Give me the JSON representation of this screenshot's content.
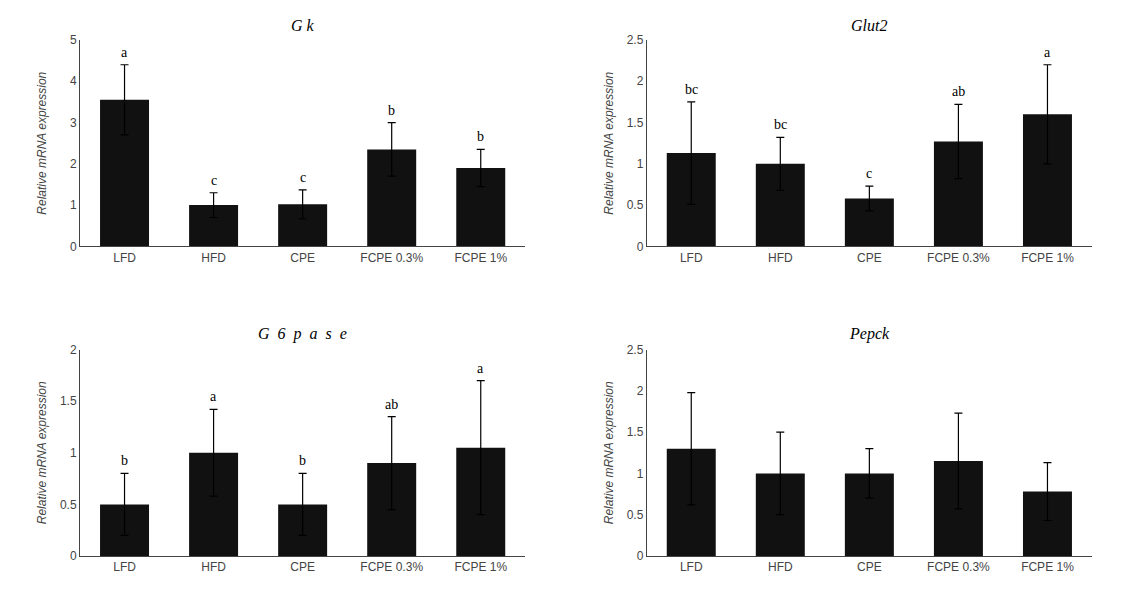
{
  "chart_data": [
    {
      "type": "bar",
      "title": "G k",
      "categories": [
        "LFD",
        "HFD",
        "CPE",
        "FCPE 0.3%",
        "FCPE 1%"
      ],
      "values": [
        3.55,
        1.0,
        1.02,
        2.35,
        1.9
      ],
      "errors": [
        0.85,
        0.3,
        0.35,
        0.65,
        0.45
      ],
      "annotations": [
        "a",
        "c",
        "c",
        "b",
        "b"
      ],
      "color": "#111111",
      "ylabel": "Relative mRNA expression",
      "ylim": [
        0,
        5
      ],
      "yticks": [
        0,
        1,
        2,
        3,
        4,
        5
      ],
      "grid": false
    },
    {
      "type": "bar",
      "title": "Glut2",
      "categories": [
        "LFD",
        "HFD",
        "CPE",
        "FCPE 0.3%",
        "FCPE 1%"
      ],
      "values": [
        1.13,
        1.0,
        0.58,
        1.27,
        1.6
      ],
      "errors": [
        0.62,
        0.32,
        0.15,
        0.45,
        0.6
      ],
      "annotations": [
        "bc",
        "bc",
        "c",
        "ab",
        "a"
      ],
      "color": "#111111",
      "ylabel": "Relative mRNA expression",
      "ylim": [
        0,
        2.5
      ],
      "yticks": [
        0,
        0.5,
        1,
        1.5,
        2,
        2.5
      ],
      "grid": false
    },
    {
      "type": "bar",
      "title": "G  6  p  a  s  e",
      "categories": [
        "LFD",
        "HFD",
        "CPE",
        "FCPE 0.3%",
        "FCPE 1%"
      ],
      "values": [
        0.5,
        1.0,
        0.5,
        0.9,
        1.05
      ],
      "errors": [
        0.3,
        0.42,
        0.3,
        0.45,
        0.65
      ],
      "annotations": [
        "b",
        "a",
        "b",
        "ab",
        "a"
      ],
      "color": "#111111",
      "ylabel": "Relative mRNA expression",
      "ylim": [
        0,
        2
      ],
      "yticks": [
        0,
        0.5,
        1,
        1.5,
        2
      ],
      "grid": false
    },
    {
      "type": "bar",
      "title": "Pepck",
      "categories": [
        "LFD",
        "HFD",
        "CPE",
        "FCPE 0.3%",
        "FCPE 1%"
      ],
      "values": [
        1.3,
        1.0,
        1.0,
        1.15,
        0.78
      ],
      "errors": [
        0.68,
        0.5,
        0.3,
        0.58,
        0.35
      ],
      "color": "#111111",
      "ylabel": "Relative mRNA expression",
      "ylim": [
        0,
        2.5
      ],
      "yticks": [
        0,
        0.5,
        1,
        1.5,
        2,
        2.5
      ],
      "grid": false
    }
  ]
}
